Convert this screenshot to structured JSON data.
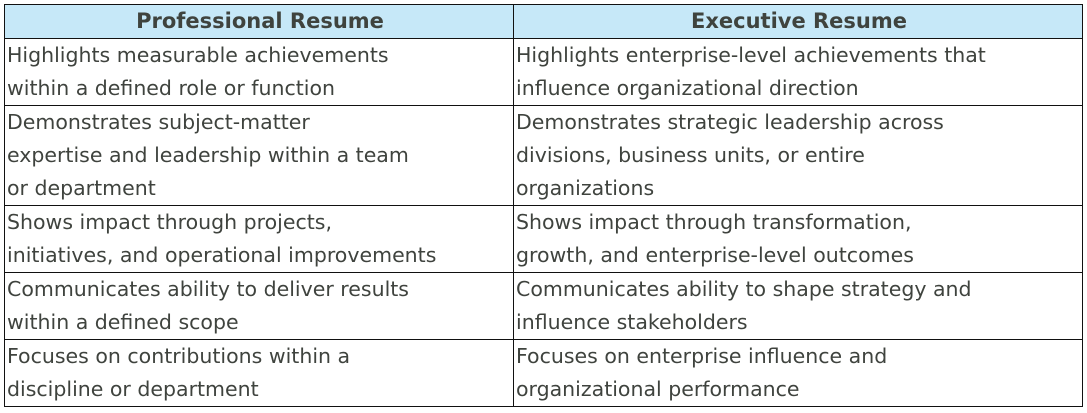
{
  "table": {
    "headers": [
      "Professional Resume",
      "Executive Resume"
    ],
    "rows": [
      [
        "Highlights measurable achievements\nwithin a defined role or function",
        "Highlights enterprise-level achievements that\ninfluence organizational direction"
      ],
      [
        "Demonstrates subject-matter\nexpertise and leadership within a team\nor department",
        "Demonstrates strategic leadership across\ndivisions, business units, or entire\norganizations"
      ],
      [
        "Shows impact through projects,\ninitiatives, and operational improvements",
        "Shows impact through transformation,\ngrowth, and enterprise-level outcomes"
      ],
      [
        "Communicates ability to deliver results\nwithin a defined scope",
        "Communicates ability to shape strategy and\ninfluence stakeholders"
      ],
      [
        "Focuses on contributions within a\ndiscipline or department",
        "Focuses on enterprise influence and\norganizational performance"
      ]
    ]
  },
  "colors": {
    "header_bg": "#c6e8f8",
    "text": "#3f433e",
    "border": "#111111"
  }
}
